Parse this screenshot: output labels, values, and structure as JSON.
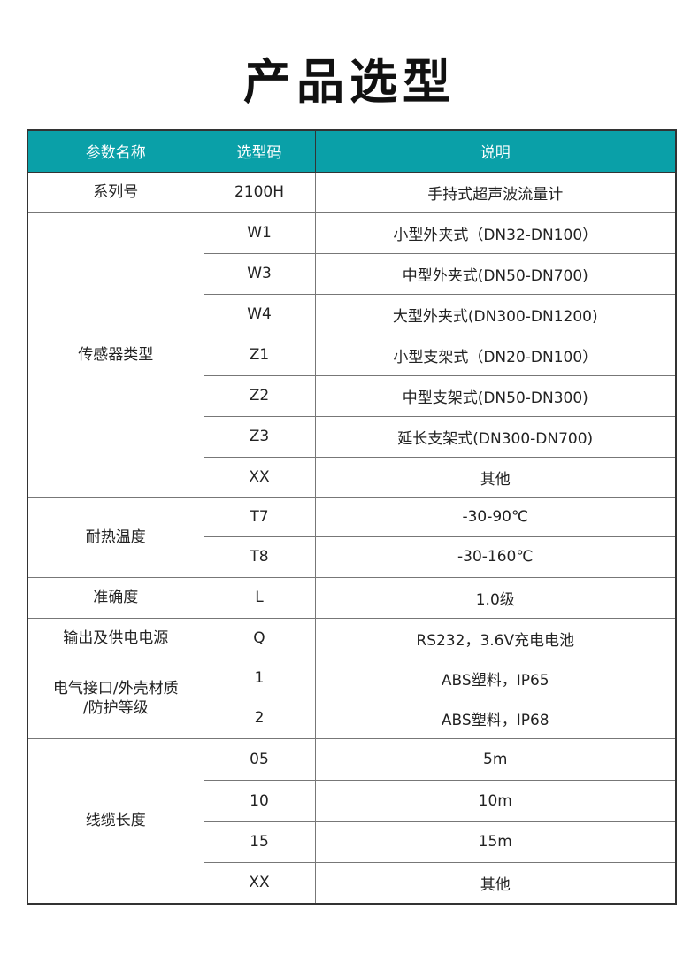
{
  "title": "产品选型",
  "header": [
    "参数名称",
    "选型码",
    "说明"
  ],
  "accent_color": "#0aa0a8",
  "groups": [
    {
      "name": "系列号",
      "rows": [
        {
          "code": "2100H",
          "desc": "手持式超声波流量计"
        }
      ]
    },
    {
      "name": "传感器类型",
      "rows": [
        {
          "code": "W1",
          "desc": "小型外夹式（DN32-DN100）"
        },
        {
          "code": "W3",
          "desc": "中型外夹式(DN50-DN700)"
        },
        {
          "code": "W4",
          "desc": "大型外夹式(DN300-DN1200)"
        },
        {
          "code": "Z1",
          "desc": "小型支架式（DN20-DN100）"
        },
        {
          "code": "Z2",
          "desc": "中型支架式(DN50-DN300)"
        },
        {
          "code": "Z3",
          "desc": "延长支架式(DN300-DN700)"
        },
        {
          "code": "XX",
          "desc": "其他"
        }
      ]
    },
    {
      "name": "耐热温度",
      "rows": [
        {
          "code": "T7",
          "desc": "-30-90℃"
        },
        {
          "code": "T8",
          "desc": "-30-160℃"
        }
      ]
    },
    {
      "name": "准确度",
      "rows": [
        {
          "code": "L",
          "desc": "1.0级"
        }
      ]
    },
    {
      "name": "输出及供电电源",
      "rows": [
        {
          "code": "Q",
          "desc": "RS232，3.6V充电电池"
        }
      ]
    },
    {
      "name": "电气接口/外壳材质\n/防护等级",
      "rows": [
        {
          "code": "1",
          "desc": "ABS塑料，IP65"
        },
        {
          "code": "2",
          "desc": "ABS塑料，IP68"
        }
      ]
    },
    {
      "name": "线缆长度",
      "rows": [
        {
          "code": "05",
          "desc": "5m"
        },
        {
          "code": "10",
          "desc": "10m"
        },
        {
          "code": "15",
          "desc": "15m"
        },
        {
          "code": "XX",
          "desc": "其他"
        }
      ]
    }
  ]
}
